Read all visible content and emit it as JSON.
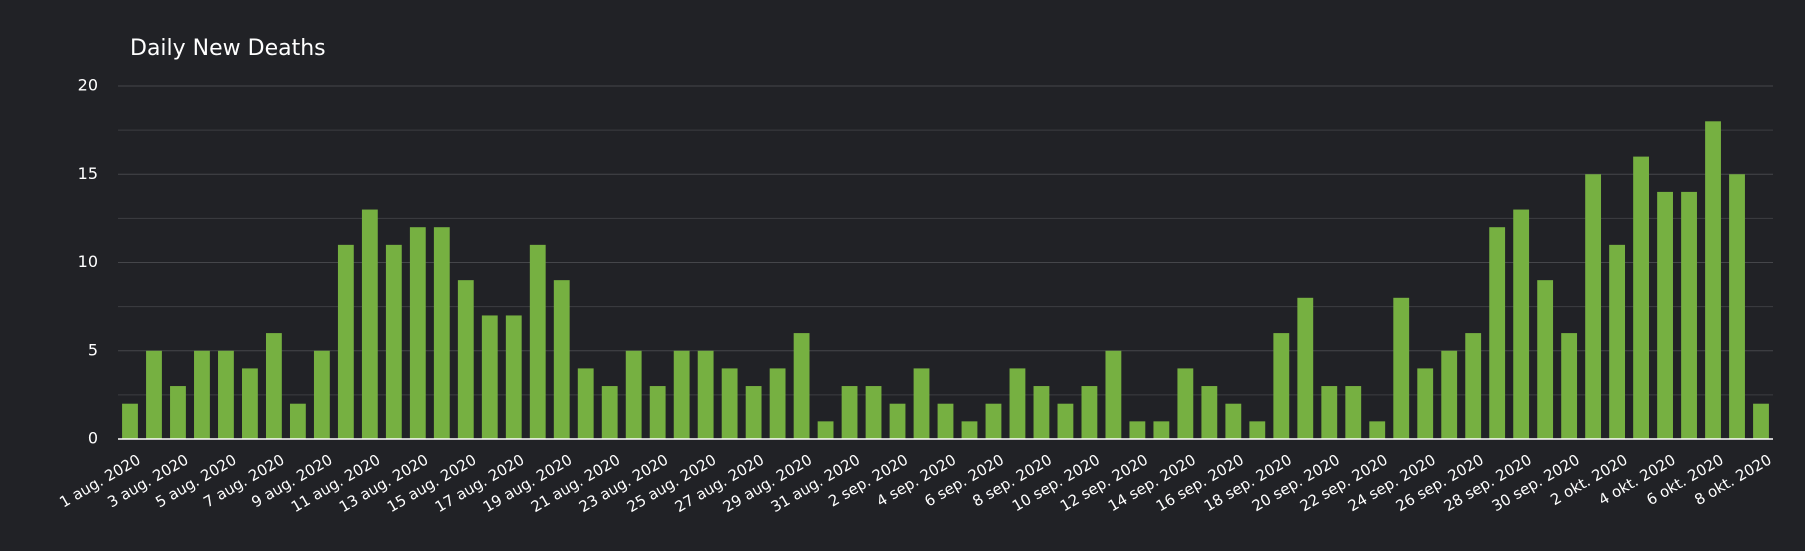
{
  "chart_data": {
    "type": "bar",
    "title": "Daily New Deaths",
    "categories": [
      "1 aug. 2020",
      null,
      "3 aug. 2020",
      null,
      "5 aug. 2020",
      null,
      "7 aug. 2020",
      null,
      "9 aug. 2020",
      null,
      "11 aug. 2020",
      null,
      "13 aug. 2020",
      null,
      "15 aug. 2020",
      null,
      "17 aug. 2020",
      null,
      "19 aug. 2020",
      null,
      "21 aug. 2020",
      null,
      "23 aug. 2020",
      null,
      "25 aug. 2020",
      null,
      "27 aug. 2020",
      null,
      "29 aug. 2020",
      null,
      "31 aug. 2020",
      null,
      "2 sep. 2020",
      null,
      "4 sep. 2020",
      null,
      "6 sep. 2020",
      null,
      "8 sep. 2020",
      null,
      "10 sep. 2020",
      null,
      "12 sep. 2020",
      null,
      "14 sep. 2020",
      null,
      "16 sep. 2020",
      null,
      "18 sep. 2020",
      null,
      "20 sep. 2020",
      null,
      "22 sep. 2020",
      null,
      "24 sep. 2020",
      null,
      "26 sep. 2020",
      null,
      "28 sep. 2020",
      null,
      "30 sep. 2020",
      null,
      "2 okt. 2020",
      null,
      "4 okt. 2020",
      null,
      "6 okt. 2020",
      null,
      "8 okt. 2020"
    ],
    "values": [
      2,
      5,
      3,
      5,
      5,
      4,
      6,
      2,
      5,
      11,
      13,
      11,
      12,
      12,
      9,
      7,
      7,
      11,
      9,
      4,
      3,
      5,
      3,
      5,
      5,
      4,
      3,
      4,
      6,
      1,
      3,
      3,
      2,
      4,
      2,
      1,
      2,
      4,
      3,
      2,
      3,
      5,
      1,
      1,
      4,
      3,
      2,
      1,
      6,
      8,
      3,
      3,
      1,
      8,
      4,
      5,
      6,
      12,
      13,
      9,
      6,
      15,
      11,
      16,
      14,
      14,
      18,
      15,
      2
    ],
    "color": "#76b041",
    "ylim": [
      0,
      20
    ],
    "yticks": [
      0,
      5,
      10,
      15,
      20
    ],
    "yminor": [
      2.5,
      7.5,
      12.5,
      17.5
    ],
    "grid": true
  }
}
